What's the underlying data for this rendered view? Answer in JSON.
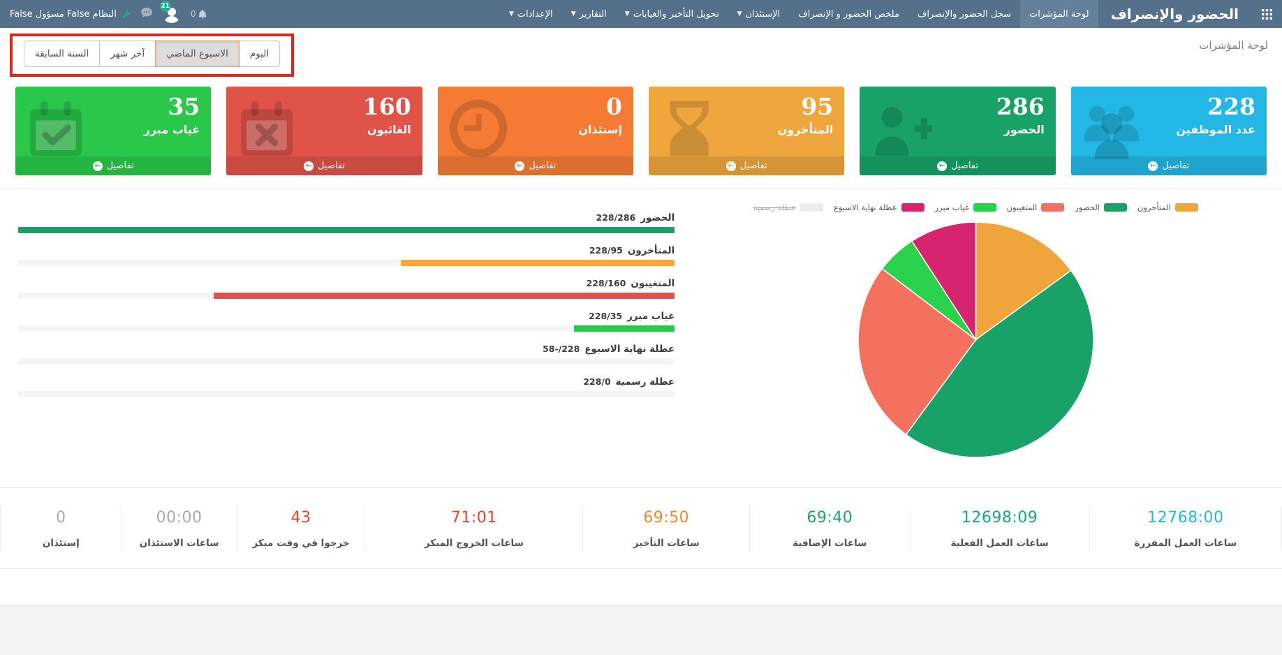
{
  "navbar": {
    "brand": "الحضور والإنصراف",
    "items": [
      {
        "label": "لوحة المؤشرات",
        "active": true,
        "dropdown": false
      },
      {
        "label": "سجل الحضور والإنصراف",
        "active": false,
        "dropdown": false
      },
      {
        "label": "ملخص الحضور و الإنصراف",
        "active": false,
        "dropdown": false
      },
      {
        "label": "الإستئذان",
        "active": false,
        "dropdown": true
      },
      {
        "label": "تحويل التأخير والغيابات",
        "active": false,
        "dropdown": true
      },
      {
        "label": "التقارير",
        "active": false,
        "dropdown": true
      },
      {
        "label": "الإعدادات",
        "active": false,
        "dropdown": true
      }
    ],
    "notification_count": "0",
    "avatar_badge": "21",
    "user_label": "النظام False مسؤول False"
  },
  "page_title": "لوحة المؤشرات",
  "filters": {
    "options": [
      {
        "label": "اليوم",
        "selected": false
      },
      {
        "label": "الاسبوع الماضي",
        "selected": true
      },
      {
        "label": "آخر شهر",
        "selected": false
      },
      {
        "label": "السنة السابقة",
        "selected": false
      }
    ]
  },
  "annotation": {
    "type": "highlight-rectangle",
    "color": "#e0251b"
  },
  "cards": [
    {
      "value": "228",
      "label": "عدد الموظفين",
      "details": "تفاصيل",
      "color": "#23b7e5",
      "icon": "users"
    },
    {
      "value": "286",
      "label": "الحضور",
      "details": "تفاصيل",
      "color": "#18a268",
      "icon": "user-plus"
    },
    {
      "value": "95",
      "label": "المتأخرون",
      "details": "تفاصيل",
      "color": "#eea63d",
      "icon": "hourglass"
    },
    {
      "value": "0",
      "label": "إستئذان",
      "details": "تفاصيل",
      "color": "#f57b35",
      "icon": "clock"
    },
    {
      "value": "160",
      "label": "الغائبون",
      "details": "تفاصيل",
      "color": "#df5349",
      "icon": "calendar-x"
    },
    {
      "value": "35",
      "label": "غياب مبرر",
      "details": "تفاصيل",
      "color": "#2ac84a",
      "icon": "calendar-check"
    }
  ],
  "chart_data": [
    {
      "type": "bar",
      "orientation": "horizontal",
      "total": 228,
      "rows": [
        {
          "label": "الحضور",
          "display": "228/286",
          "value": 286,
          "color": "#18a268"
        },
        {
          "label": "المتأخرون",
          "display": "228/95",
          "value": 95,
          "color": "#f4a93f"
        },
        {
          "label": "المتغيبون",
          "display": "228/160",
          "value": 160,
          "color": "#df5349"
        },
        {
          "label": "غياب مبرر",
          "display": "228/35",
          "value": 35,
          "color": "#2ac84a"
        },
        {
          "label": "عطلة نهاية الاسبوع",
          "display": "58-/228",
          "value": -58,
          "color": "#e8e8e8"
        },
        {
          "label": "عطلة رسمية",
          "display": "228/0",
          "value": 0,
          "color": "#e8e8e8"
        }
      ]
    },
    {
      "type": "pie",
      "slices": [
        {
          "label": "المتأخرون",
          "value": 95,
          "color": "#f0a43c"
        },
        {
          "label": "الحضور",
          "value": 286,
          "color": "#18a268"
        },
        {
          "label": "المتغيبون",
          "value": 160,
          "color": "#f4715f"
        },
        {
          "label": "غياب مبرر",
          "value": 35,
          "color": "#2ad14b"
        },
        {
          "label": "عطلة نهاية الاسبوع",
          "value": 58,
          "color": "#d6246e"
        }
      ],
      "legend": [
        {
          "label": "المتأخرون",
          "color": "#f0a43c",
          "disabled": false
        },
        {
          "label": "الحضور",
          "color": "#18a268",
          "disabled": false
        },
        {
          "label": "المتغيبون",
          "color": "#f4715f",
          "disabled": false
        },
        {
          "label": "غياب مبرر",
          "color": "#2ad14b",
          "disabled": false
        },
        {
          "label": "عطلة نهاية الاسبوع",
          "color": "#d6246e",
          "disabled": false
        },
        {
          "label": "عطلة رسمية",
          "color": "#ececec",
          "disabled": true
        }
      ],
      "legend_position": "top"
    }
  ],
  "stats": [
    {
      "value": "12768:00",
      "label": "ساعات العمل المقررة",
      "color": "#23b7e5",
      "width": "15%"
    },
    {
      "value": "12698:09",
      "label": "ساعات العمل الفعلية",
      "color": "#18a689",
      "width": "14%"
    },
    {
      "value": "69:40",
      "label": "ساعات الإضافية",
      "color": "#21a366",
      "width": "12.5%"
    },
    {
      "value": "69:50",
      "label": "ساعات التأخير",
      "color": "#f0882c",
      "width": "13%"
    },
    {
      "value": "71:01",
      "label": "ساعات الخروج المبكر",
      "color": "#e8432e",
      "width": "17%"
    },
    {
      "value": "43",
      "label": "خرجوا في وقت مبكر",
      "color": "#e8432e",
      "width": "10%"
    },
    {
      "value": "00:00",
      "label": "ساعات الاستئذان",
      "color": "#aaaaaa",
      "width": "9%"
    },
    {
      "value": "0",
      "label": "إستئذان",
      "color": "#aaaaaa",
      "width": "9.5%"
    }
  ]
}
